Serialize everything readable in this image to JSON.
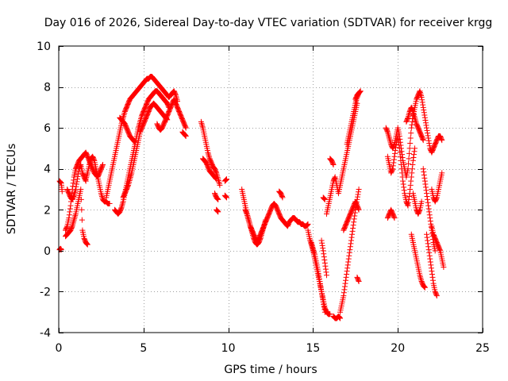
{
  "chart_data": {
    "type": "scatter",
    "title": "Day 016 of 2026, Sidereal Day-to-day VTEC variation (SDTVAR) for receiver krgg",
    "xlabel": "GPS time / hours",
    "ylabel": "SDTVAR / TECUs",
    "xlim": [
      0,
      25
    ],
    "ylim": [
      -4,
      10
    ],
    "xticks": [
      "0",
      "5",
      "10",
      "15",
      "20",
      "25"
    ],
    "yticks": [
      "-4",
      "-2",
      "0",
      "2",
      "4",
      "6",
      "8",
      "10"
    ],
    "grid": true,
    "marker": "+",
    "color": "#ff0000",
    "series": [
      {
        "name": "s1",
        "x": [
          0.05,
          0.15,
          0.2
        ],
        "y": [
          3.4,
          3.3,
          2.9
        ]
      },
      {
        "name": "s2",
        "x": [
          0.05,
          0.1,
          0.15
        ],
        "y": [
          0.05,
          0.1,
          0.05
        ]
      },
      {
        "name": "s3",
        "x": [
          0.4,
          0.5,
          0.6,
          0.7,
          0.8,
          0.9,
          1.0,
          1.1,
          1.2,
          1.3,
          1.4,
          1.5,
          1.6,
          1.7,
          1.8,
          1.9,
          2.0,
          2.1,
          2.2,
          2.3,
          2.4,
          2.5,
          2.6
        ],
        "y": [
          1.0,
          1.2,
          1.6,
          2.2,
          3.0,
          3.6,
          4.0,
          4.2,
          4.4,
          4.5,
          4.6,
          4.7,
          4.8,
          4.6,
          4.4,
          4.2,
          4.0,
          3.8,
          3.7,
          3.6,
          3.8,
          4.0,
          4.2
        ]
      },
      {
        "name": "s4",
        "x": [
          0.5,
          0.6,
          0.7,
          0.8,
          0.9,
          1.0,
          1.1,
          1.2,
          1.3,
          1.4,
          1.5,
          1.6
        ],
        "y": [
          3.0,
          2.8,
          2.6,
          2.5,
          2.7,
          3.0,
          3.5,
          4.0,
          4.2,
          3.8,
          3.6,
          3.4
        ]
      },
      {
        "name": "s5",
        "x": [
          0.4,
          0.5,
          0.6,
          0.7,
          0.8,
          0.9,
          1.0,
          1.1,
          1.2,
          1.3,
          1.4,
          1.5,
          1.6,
          1.7
        ],
        "y": [
          0.7,
          0.8,
          0.9,
          1.0,
          1.2,
          1.5,
          1.8,
          2.2,
          2.6,
          3.0,
          1.0,
          0.6,
          0.4,
          0.3
        ]
      },
      {
        "name": "s6",
        "x": [
          1.6,
          1.7,
          1.8,
          1.9,
          2.0,
          2.1,
          2.2,
          2.3,
          2.4,
          2.5,
          2.6,
          2.7,
          2.8,
          2.9,
          3.0
        ],
        "y": [
          3.5,
          3.8,
          4.2,
          4.5,
          4.6,
          4.4,
          4.0,
          3.6,
          3.2,
          2.8,
          2.5,
          2.4,
          2.4,
          2.3,
          2.3
        ]
      },
      {
        "name": "s7",
        "x": [
          2.8,
          2.9,
          3.0,
          3.1,
          3.2,
          3.3,
          3.4,
          3.5,
          3.6,
          3.7,
          3.8,
          3.9,
          4.0,
          4.1,
          4.2,
          4.3,
          4.4,
          4.5,
          4.6,
          4.7,
          4.8,
          4.9,
          5.0,
          5.1,
          5.2,
          5.3,
          5.4,
          5.5,
          5.6,
          5.7,
          5.8,
          5.9,
          6.0,
          6.1,
          6.2,
          6.3,
          6.4,
          6.5,
          6.6,
          6.7,
          6.8,
          6.9,
          7.0
        ],
        "y": [
          2.6,
          3.0,
          3.4,
          3.8,
          4.2,
          4.6,
          5.0,
          5.4,
          5.8,
          6.2,
          6.5,
          6.8,
          7.0,
          7.2,
          7.4,
          7.5,
          7.6,
          7.7,
          7.8,
          7.9,
          8.0,
          8.1,
          8.2,
          8.3,
          8.4,
          8.4,
          8.5,
          8.5,
          8.4,
          8.3,
          8.2,
          8.1,
          8.0,
          7.9,
          7.8,
          7.7,
          7.6,
          7.5,
          7.6,
          7.7,
          7.8,
          7.6,
          7.3
        ]
      },
      {
        "name": "s8",
        "x": [
          3.3,
          3.4,
          3.5,
          3.6,
          3.7,
          3.8,
          3.9,
          4.0,
          4.1,
          4.2,
          4.3,
          4.4,
          4.5,
          4.6,
          4.7,
          4.8,
          4.9,
          5.0,
          5.1,
          5.2,
          5.3,
          5.4,
          5.5,
          5.6,
          5.7,
          5.8,
          5.9,
          6.0,
          6.1,
          6.2,
          6.3,
          6.4,
          6.5
        ],
        "y": [
          2.0,
          1.9,
          1.8,
          1.9,
          2.1,
          2.4,
          2.8,
          3.2,
          3.6,
          4.0,
          4.4,
          4.8,
          5.2,
          5.6,
          6.0,
          6.3,
          6.6,
          6.8,
          7.0,
          7.2,
          7.4,
          7.5,
          7.6,
          7.7,
          7.8,
          7.8,
          7.7,
          7.6,
          7.5,
          7.4,
          7.3,
          7.2,
          7.0
        ]
      },
      {
        "name": "s9",
        "x": [
          3.8,
          3.9,
          4.0,
          4.1,
          4.2,
          4.3,
          4.4,
          4.5,
          4.6,
          4.7,
          4.8,
          4.9,
          5.0,
          5.1,
          5.2,
          5.3,
          5.4,
          5.5,
          5.6,
          5.7,
          5.8,
          5.9,
          6.0,
          6.1,
          6.2,
          6.3,
          6.4
        ],
        "y": [
          2.6,
          2.8,
          3.0,
          3.2,
          3.5,
          3.8,
          4.2,
          4.6,
          5.0,
          5.4,
          5.8,
          6.0,
          6.2,
          6.4,
          6.6,
          6.8,
          7.0,
          7.1,
          7.2,
          7.1,
          7.0,
          6.9,
          6.8,
          6.7,
          6.6,
          6.5,
          6.4
        ]
      },
      {
        "name": "s10",
        "x": [
          3.6,
          3.7,
          3.8,
          3.9,
          4.0,
          4.1,
          4.2,
          4.3,
          4.4,
          4.5
        ],
        "y": [
          6.5,
          6.4,
          6.3,
          6.2,
          6.0,
          5.8,
          5.6,
          5.5,
          5.4,
          5.3
        ]
      },
      {
        "name": "s11",
        "x": [
          5.8,
          5.9,
          6.0,
          6.1,
          6.2,
          6.3,
          6.4,
          6.5,
          6.6,
          6.7,
          6.8,
          6.9,
          7.0,
          7.1,
          7.2,
          7.3,
          7.4,
          7.5
        ],
        "y": [
          6.2,
          6.0,
          5.9,
          6.0,
          6.2,
          6.4,
          6.6,
          6.8,
          7.0,
          7.2,
          7.4,
          7.2,
          7.0,
          6.8,
          6.6,
          6.4,
          6.2,
          6.0
        ]
      },
      {
        "name": "s12",
        "x": [
          7.3,
          7.4,
          7.5
        ],
        "y": [
          5.8,
          5.7,
          5.6
        ]
      },
      {
        "name": "s13",
        "x": [
          8.4,
          8.5,
          8.6,
          8.7,
          8.8,
          8.9,
          9.0,
          9.1,
          9.2,
          9.3,
          9.4,
          9.5
        ],
        "y": [
          6.3,
          6.0,
          5.6,
          5.2,
          4.8,
          4.5,
          4.3,
          4.1,
          4.0,
          3.8,
          3.5,
          3.2
        ]
      },
      {
        "name": "s14",
        "x": [
          8.5,
          8.6,
          8.7,
          8.8,
          8.9,
          9.0,
          9.1,
          9.2,
          9.3
        ],
        "y": [
          4.5,
          4.4,
          4.3,
          4.1,
          3.9,
          3.8,
          3.7,
          3.6,
          3.5
        ]
      },
      {
        "name": "s15",
        "x": [
          9.2,
          9.3,
          9.4
        ],
        "y": [
          2.8,
          2.6,
          2.5
        ]
      },
      {
        "name": "s16",
        "x": [
          9.3,
          9.4
        ],
        "y": [
          2.0,
          1.9
        ]
      },
      {
        "name": "s17",
        "x": [
          9.8,
          9.9
        ],
        "y": [
          3.4,
          3.5
        ]
      },
      {
        "name": "s18",
        "x": [
          9.8,
          9.9
        ],
        "y": [
          2.7,
          2.6
        ]
      },
      {
        "name": "s19",
        "x": [
          10.8,
          10.9,
          11.0,
          11.1,
          11.2,
          11.3,
          11.4,
          11.5,
          11.6,
          11.7,
          11.8,
          11.9,
          12.0,
          12.1,
          12.2,
          12.3,
          12.4,
          12.5,
          12.6,
          12.7,
          12.8,
          12.9,
          13.0,
          13.1,
          13.2,
          13.3,
          13.4,
          13.5,
          13.6,
          13.7,
          13.8,
          13.9,
          14.0,
          14.1,
          14.2,
          14.3,
          14.4,
          14.5,
          14.6,
          14.7
        ],
        "y": [
          3.0,
          2.6,
          2.2,
          1.8,
          1.5,
          1.2,
          1.0,
          0.8,
          0.6,
          0.5,
          0.6,
          0.8,
          1.0,
          1.2,
          1.4,
          1.6,
          1.8,
          2.0,
          2.2,
          2.3,
          2.2,
          2.0,
          1.8,
          1.6,
          1.5,
          1.4,
          1.3,
          1.2,
          1.4,
          1.5,
          1.6,
          1.6,
          1.5,
          1.4,
          1.4,
          1.3,
          1.3,
          1.2,
          1.2,
          1.3
        ]
      },
      {
        "name": "s20",
        "x": [
          11.0,
          11.1,
          11.2,
          11.3,
          11.4,
          11.5,
          11.6,
          11.7,
          11.8,
          11.9,
          12.0,
          12.1,
          12.2
        ],
        "y": [
          2.0,
          1.8,
          1.5,
          1.2,
          0.9,
          0.6,
          0.4,
          0.3,
          0.4,
          0.6,
          0.9,
          1.2,
          1.5
        ]
      },
      {
        "name": "s21",
        "x": [
          13.0,
          13.1,
          13.2
        ],
        "y": [
          2.9,
          2.8,
          2.6
        ]
      },
      {
        "name": "s22",
        "x": [
          14.7,
          14.8,
          14.9,
          15.0,
          15.1,
          15.2,
          15.3,
          15.4,
          15.5,
          15.6,
          15.7,
          15.8,
          15.9,
          16.0
        ],
        "y": [
          1.0,
          0.6,
          0.3,
          0.0,
          -0.4,
          -0.8,
          -1.2,
          -1.6,
          -2.0,
          -2.4,
          -2.8,
          -3.0,
          -3.1,
          -3.1
        ]
      },
      {
        "name": "s23",
        "x": [
          14.9,
          15.0,
          15.1,
          15.2,
          15.3,
          15.4,
          15.5,
          15.6,
          15.7
        ],
        "y": [
          0.4,
          0.1,
          -0.2,
          -0.6,
          -1.0,
          -1.5,
          -2.0,
          -2.5,
          -3.0
        ]
      },
      {
        "name": "s24",
        "x": [
          15.5,
          15.6,
          15.7,
          15.8
        ],
        "y": [
          0.5,
          0.0,
          -0.6,
          -1.2
        ]
      },
      {
        "name": "s25",
        "x": [
          15.6,
          15.7
        ],
        "y": [
          2.6,
          2.5
        ]
      },
      {
        "name": "s26",
        "x": [
          15.8,
          15.9,
          16.0,
          16.1,
          16.2,
          16.3,
          16.4,
          16.5,
          16.6,
          16.7,
          16.8,
          16.9,
          17.0,
          17.1,
          17.2,
          17.3,
          17.4,
          17.5,
          17.6
        ],
        "y": [
          1.8,
          2.2,
          2.6,
          3.0,
          3.4,
          3.6,
          3.2,
          2.8,
          3.2,
          3.6,
          4.0,
          4.4,
          4.8,
          5.2,
          5.6,
          6.0,
          6.4,
          6.8,
          7.2
        ]
      },
      {
        "name": "s27",
        "x": [
          16.0,
          16.1,
          16.2
        ],
        "y": [
          4.5,
          4.4,
          4.2
        ]
      },
      {
        "name": "s28",
        "x": [
          16.2,
          16.3,
          16.4,
          16.5,
          16.6
        ],
        "y": [
          -3.2,
          -3.3,
          -3.3,
          -3.2,
          -3.3
        ]
      },
      {
        "name": "s29",
        "x": [
          16.6,
          16.7,
          16.8,
          16.9,
          17.0,
          17.1,
          17.2,
          17.3,
          17.4,
          17.5,
          17.6,
          17.7
        ],
        "y": [
          -3.0,
          -2.6,
          -2.2,
          -1.6,
          -1.0,
          -0.4,
          0.2,
          0.8,
          1.4,
          2.0,
          2.5,
          3.0
        ]
      },
      {
        "name": "s30",
        "x": [
          16.8,
          16.9,
          17.0,
          17.1,
          17.2,
          17.3,
          17.4,
          17.5,
          17.6,
          17.7
        ],
        "y": [
          1.0,
          1.2,
          1.4,
          1.6,
          1.8,
          2.0,
          2.2,
          2.4,
          2.2,
          2.0
        ]
      },
      {
        "name": "s31",
        "x": [
          17.0,
          17.1,
          17.2,
          17.3,
          17.4,
          17.5,
          17.6,
          17.7
        ],
        "y": [
          5.2,
          5.6,
          6.0,
          6.4,
          6.8,
          7.2,
          7.5,
          7.7
        ]
      },
      {
        "name": "s32",
        "x": [
          17.5,
          17.6,
          17.7,
          17.8
        ],
        "y": [
          7.4,
          7.6,
          7.7,
          7.8
        ]
      },
      {
        "name": "s33",
        "x": [
          17.6,
          17.7
        ],
        "y": [
          -1.3,
          -1.5
        ]
      },
      {
        "name": "s34",
        "x": [
          19.3,
          19.4,
          19.5,
          19.6,
          19.7,
          19.8,
          19.9,
          20.0,
          20.1,
          20.2,
          20.3,
          20.4,
          20.5,
          20.6,
          20.7,
          20.8,
          20.9,
          21.0,
          21.1,
          21.2,
          21.3,
          21.4,
          21.5,
          21.6,
          21.7,
          21.8,
          21.9,
          22.0,
          22.1,
          22.2,
          22.3,
          22.4,
          22.5,
          22.6
        ],
        "y": [
          6.0,
          5.8,
          5.5,
          5.2,
          5.0,
          5.2,
          5.6,
          6.0,
          5.6,
          5.0,
          4.4,
          4.0,
          3.6,
          4.0,
          5.0,
          6.0,
          6.6,
          7.0,
          7.4,
          7.6,
          7.8,
          7.5,
          7.0,
          6.5,
          6.0,
          5.5,
          5.0,
          4.8,
          5.0,
          5.2,
          5.4,
          5.6,
          5.6,
          5.4
        ]
      },
      {
        "name": "s35",
        "x": [
          19.4,
          19.5,
          19.6,
          19.7,
          19.8,
          19.9,
          20.0,
          20.1,
          20.2,
          20.3,
          20.4,
          20.5,
          20.6,
          20.7,
          20.8,
          20.9,
          21.0
        ],
        "y": [
          4.6,
          4.2,
          3.8,
          4.0,
          4.6,
          5.2,
          5.6,
          5.0,
          4.2,
          3.4,
          2.8,
          2.4,
          2.2,
          2.8,
          3.6,
          4.4,
          5.0
        ]
      },
      {
        "name": "s36",
        "x": [
          19.4,
          19.5,
          19.6,
          19.7,
          19.8
        ],
        "y": [
          1.6,
          1.8,
          2.0,
          1.8,
          1.6
        ]
      },
      {
        "name": "s37",
        "x": [
          20.5,
          20.6,
          20.7,
          20.8,
          20.9,
          21.0,
          21.1,
          21.2,
          21.3,
          21.4,
          21.5
        ],
        "y": [
          6.3,
          6.5,
          6.8,
          7.0,
          6.8,
          6.5,
          6.2,
          6.0,
          5.8,
          5.6,
          5.4
        ]
      },
      {
        "name": "s38",
        "x": [
          20.9,
          21.0,
          21.1,
          21.2,
          21.3,
          21.4
        ],
        "y": [
          2.8,
          2.4,
          2.0,
          1.8,
          2.0,
          2.4
        ]
      },
      {
        "name": "s39",
        "x": [
          20.8,
          20.9,
          21.0,
          21.1,
          21.2,
          21.3,
          21.4,
          21.5,
          21.6
        ],
        "y": [
          0.8,
          0.4,
          0.0,
          -0.4,
          -0.8,
          -1.2,
          -1.5,
          -1.7,
          -1.8
        ]
      },
      {
        "name": "s40",
        "x": [
          21.5,
          21.6,
          21.7,
          21.8,
          21.9,
          22.0,
          22.1,
          22.2
        ],
        "y": [
          4.0,
          3.4,
          2.8,
          2.2,
          1.6,
          1.0,
          0.4,
          0.0
        ]
      },
      {
        "name": "s41",
        "x": [
          21.7,
          21.8,
          21.9,
          22.0,
          22.1,
          22.2,
          22.3
        ],
        "y": [
          0.8,
          0.2,
          -0.4,
          -1.0,
          -1.6,
          -2.0,
          -2.2
        ]
      },
      {
        "name": "s42",
        "x": [
          22.0,
          22.1,
          22.2,
          22.3,
          22.4,
          22.5,
          22.6,
          22.7
        ],
        "y": [
          1.2,
          0.8,
          0.6,
          0.4,
          0.2,
          0.0,
          -0.4,
          -0.8
        ]
      },
      {
        "name": "s43",
        "x": [
          22.0,
          22.1,
          22.2,
          22.3,
          22.4,
          22.5,
          22.6
        ],
        "y": [
          3.0,
          2.6,
          2.4,
          2.6,
          3.0,
          3.4,
          3.8
        ]
      }
    ]
  }
}
